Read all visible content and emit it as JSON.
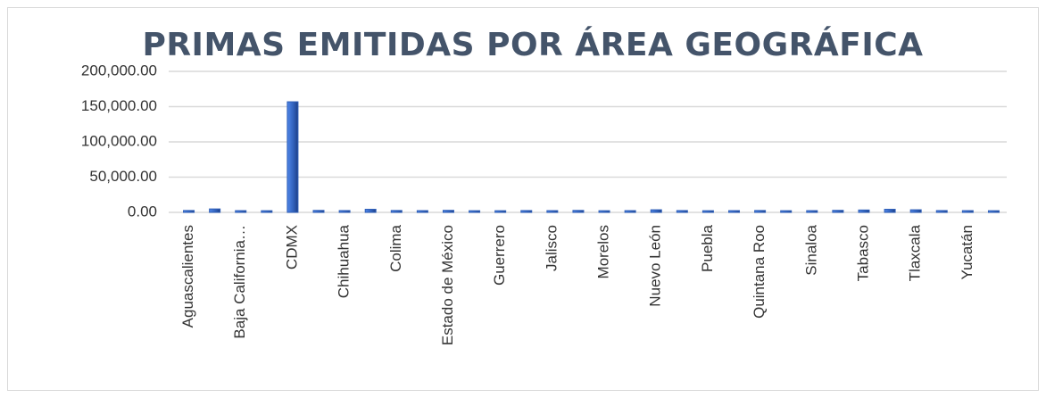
{
  "chart_data": {
    "type": "bar",
    "title": "PRIMAS EMITIDAS POR ÁREA GEOGRÁFICA",
    "categories": [
      "Aguascalientes",
      null,
      "Baja California…",
      null,
      "CDMX",
      null,
      "Chihuahua",
      null,
      "Colima",
      null,
      "Estado de México",
      null,
      "Guerrero",
      null,
      "Jalisco",
      null,
      "Morelos",
      null,
      "Nuevo León",
      null,
      "Puebla",
      null,
      "Quintana Roo",
      null,
      "Sinaloa",
      null,
      "Tabasco",
      null,
      "Tlaxcala",
      null,
      "Yucatán",
      null
    ],
    "values": [
      800,
      3000,
      600,
      500,
      155000,
      900,
      700,
      2500,
      800,
      600,
      1000,
      500,
      500,
      700,
      600,
      900,
      500,
      600,
      1800,
      700,
      500,
      600,
      800,
      500,
      600,
      1000,
      1500,
      2500,
      1800,
      700,
      600,
      500
    ],
    "color": "#2f5fb8",
    "ylim": [
      0,
      200000
    ],
    "yticks": [
      {
        "value": 0,
        "label": "0.00"
      },
      {
        "value": 50000,
        "label": "50,000.00"
      },
      {
        "value": 100000,
        "label": "100,000.00"
      },
      {
        "value": 150000,
        "label": "150,000.00"
      },
      {
        "value": 200000,
        "label": "200,000.00"
      }
    ],
    "grid": true
  }
}
